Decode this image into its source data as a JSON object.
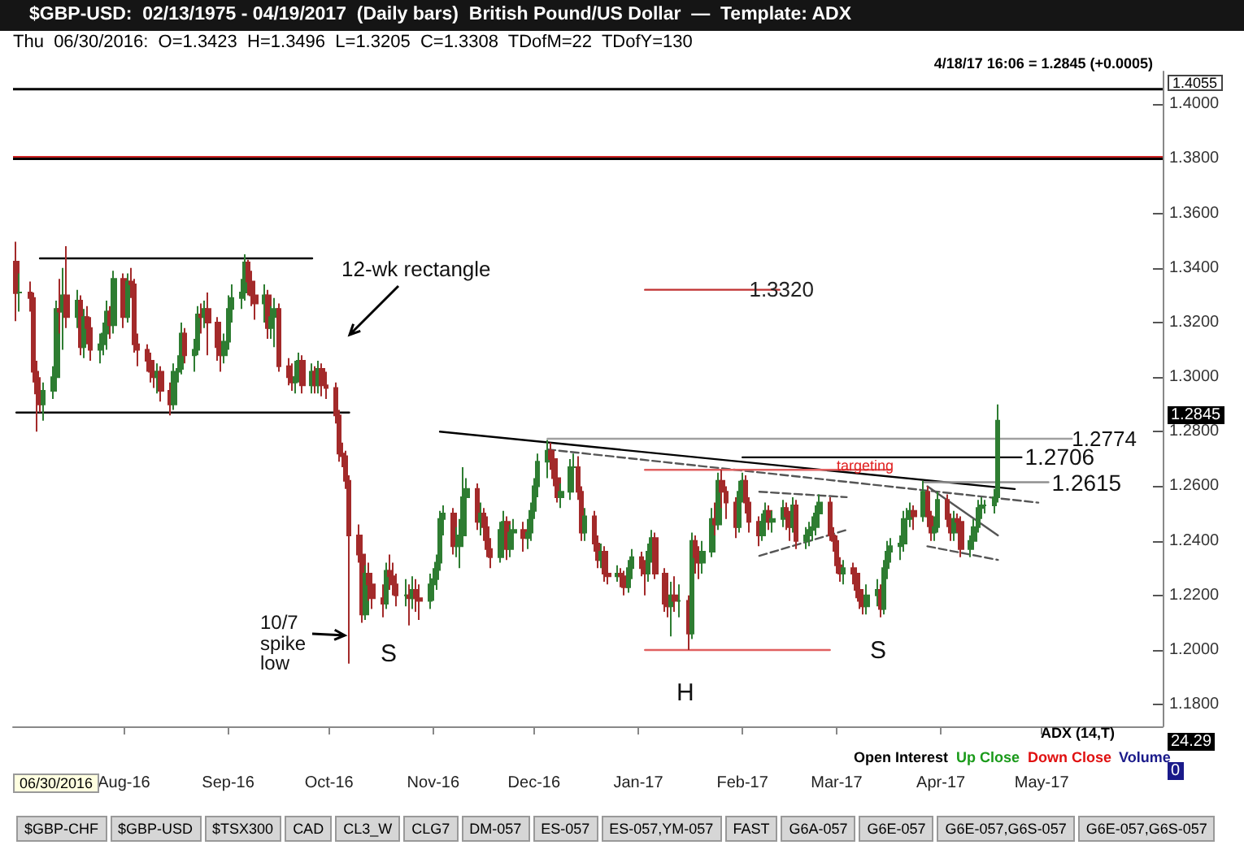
{
  "chart_data": {
    "type": "candlestick",
    "title": "$GBP-USD:  02/13/1975 - 04/19/2017  (Daily bars)  British Pound/US Dollar  —  Template: ADX",
    "subtitle": "Thu  06/30/2016:  O=1.3423  H=1.3496  L=1.3205  C=1.3308  TDofM=22  TDofY=130",
    "x": [
      "2016-06-30",
      "2016-07-01",
      "2016-07-04",
      "2016-07-05",
      "2016-07-06",
      "2016-07-07",
      "2016-07-08",
      "2016-07-11",
      "2016-07-12",
      "2016-07-13",
      "2016-07-14",
      "2016-07-15",
      "2016-07-18",
      "2016-07-19",
      "2016-07-20",
      "2016-07-21",
      "2016-07-22",
      "2016-07-25",
      "2016-07-26",
      "2016-07-27",
      "2016-07-28",
      "2016-07-29",
      "2016-08-01",
      "2016-08-02",
      "2016-08-03",
      "2016-08-04",
      "2016-08-05",
      "2016-08-08",
      "2016-08-09",
      "2016-08-10",
      "2016-08-11",
      "2016-08-12",
      "2016-08-15",
      "2016-08-16",
      "2016-08-17",
      "2016-08-18",
      "2016-08-19",
      "2016-08-22",
      "2016-08-23",
      "2016-08-24",
      "2016-08-25",
      "2016-08-26",
      "2016-08-29",
      "2016-08-30",
      "2016-08-31",
      "2016-09-01",
      "2016-09-02",
      "2016-09-05",
      "2016-09-06",
      "2016-09-07",
      "2016-09-08",
      "2016-09-09",
      "2016-09-12",
      "2016-09-13",
      "2016-09-14",
      "2016-09-15",
      "2016-09-16",
      "2016-09-19",
      "2016-09-20",
      "2016-09-21",
      "2016-09-22",
      "2016-09-23",
      "2016-09-26",
      "2016-09-27",
      "2016-09-28",
      "2016-09-29",
      "2016-09-30",
      "2016-10-03",
      "2016-10-04",
      "2016-10-05",
      "2016-10-06",
      "2016-10-07",
      "2016-10-10",
      "2016-10-11",
      "2016-10-12",
      "2016-10-13",
      "2016-10-14",
      "2016-10-17",
      "2016-10-18",
      "2016-10-19",
      "2016-10-20",
      "2016-10-21",
      "2016-10-24",
      "2016-10-25",
      "2016-10-26",
      "2016-10-27",
      "2016-10-28",
      "2016-10-31",
      "2016-11-01",
      "2016-11-02",
      "2016-11-03",
      "2016-11-04",
      "2016-11-07",
      "2016-11-08",
      "2016-11-09",
      "2016-11-10",
      "2016-11-11",
      "2016-11-14",
      "2016-11-15",
      "2016-11-16",
      "2016-11-17",
      "2016-11-18",
      "2016-11-21",
      "2016-11-22",
      "2016-11-23",
      "2016-11-24",
      "2016-11-25",
      "2016-11-28",
      "2016-11-29",
      "2016-11-30",
      "2016-12-01",
      "2016-12-02",
      "2016-12-05",
      "2016-12-06",
      "2016-12-07",
      "2016-12-08",
      "2016-12-09",
      "2016-12-12",
      "2016-12-13",
      "2016-12-14",
      "2016-12-15",
      "2016-12-16",
      "2016-12-19",
      "2016-12-20",
      "2016-12-21",
      "2016-12-22",
      "2016-12-23",
      "2016-12-26",
      "2016-12-27",
      "2016-12-28",
      "2016-12-29",
      "2016-12-30",
      "2017-01-02",
      "2017-01-03",
      "2017-01-04",
      "2017-01-05",
      "2017-01-06",
      "2017-01-09",
      "2017-01-10",
      "2017-01-11",
      "2017-01-12",
      "2017-01-13",
      "2017-01-16",
      "2017-01-17",
      "2017-01-18",
      "2017-01-19",
      "2017-01-20",
      "2017-01-23",
      "2017-01-24",
      "2017-01-25",
      "2017-01-26",
      "2017-01-27",
      "2017-01-30",
      "2017-01-31",
      "2017-02-01",
      "2017-02-02",
      "2017-02-03",
      "2017-02-06",
      "2017-02-07",
      "2017-02-08",
      "2017-02-09",
      "2017-02-10",
      "2017-02-13",
      "2017-02-14",
      "2017-02-15",
      "2017-02-16",
      "2017-02-17",
      "2017-02-20",
      "2017-02-21",
      "2017-02-22",
      "2017-02-23",
      "2017-02-24",
      "2017-02-27",
      "2017-02-28",
      "2017-03-01",
      "2017-03-02",
      "2017-03-03",
      "2017-03-06",
      "2017-03-07",
      "2017-03-08",
      "2017-03-09",
      "2017-03-10",
      "2017-03-13",
      "2017-03-14",
      "2017-03-15",
      "2017-03-16",
      "2017-03-17",
      "2017-03-20",
      "2017-03-21",
      "2017-03-22",
      "2017-03-23",
      "2017-03-24",
      "2017-03-27",
      "2017-03-28",
      "2017-03-29",
      "2017-03-30",
      "2017-03-31",
      "2017-04-03",
      "2017-04-04",
      "2017-04-05",
      "2017-04-06",
      "2017-04-07",
      "2017-04-10",
      "2017-04-11",
      "2017-04-12",
      "2017-04-13",
      "2017-04-14",
      "2017-04-17",
      "2017-04-18"
    ],
    "ohlc": [
      [
        1.3423,
        1.3496,
        1.3205,
        1.3308
      ],
      [
        1.331,
        1.338,
        1.324,
        1.331
      ],
      [
        1.331,
        1.335,
        1.324,
        1.329
      ],
      [
        1.329,
        1.331,
        1.298,
        1.302
      ],
      [
        1.302,
        1.306,
        1.28,
        1.294
      ],
      [
        1.294,
        1.3,
        1.287,
        1.29
      ],
      [
        1.29,
        1.298,
        1.284,
        1.295
      ],
      [
        1.295,
        1.304,
        1.292,
        1.3
      ],
      [
        1.3,
        1.328,
        1.298,
        1.325
      ],
      [
        1.325,
        1.336,
        1.316,
        1.324
      ],
      [
        1.324,
        1.34,
        1.31,
        1.33
      ],
      [
        1.33,
        1.348,
        1.318,
        1.322
      ],
      [
        1.322,
        1.332,
        1.318,
        1.328
      ],
      [
        1.328,
        1.33,
        1.308,
        1.311
      ],
      [
        1.311,
        1.325,
        1.307,
        1.322
      ],
      [
        1.322,
        1.326,
        1.312,
        1.318
      ],
      [
        1.318,
        1.322,
        1.306,
        1.31
      ],
      [
        1.31,
        1.316,
        1.305,
        1.312
      ],
      [
        1.312,
        1.32,
        1.308,
        1.316
      ],
      [
        1.316,
        1.328,
        1.31,
        1.324
      ],
      [
        1.324,
        1.326,
        1.314,
        1.319
      ],
      [
        1.319,
        1.339,
        1.316,
        1.336
      ],
      [
        1.336,
        1.338,
        1.318,
        1.322
      ],
      [
        1.322,
        1.338,
        1.32,
        1.335
      ],
      [
        1.335,
        1.34,
        1.329,
        1.334
      ],
      [
        1.334,
        1.336,
        1.309,
        1.312
      ],
      [
        1.312,
        1.316,
        1.304,
        1.31
      ],
      [
        1.31,
        1.312,
        1.302,
        1.306
      ],
      [
        1.306,
        1.309,
        1.298,
        1.302
      ],
      [
        1.302,
        1.306,
        1.296,
        1.3
      ],
      [
        1.3,
        1.305,
        1.294,
        1.302
      ],
      [
        1.302,
        1.304,
        1.291,
        1.295
      ],
      [
        1.295,
        1.298,
        1.286,
        1.29
      ],
      [
        1.29,
        1.305,
        1.288,
        1.302
      ],
      [
        1.302,
        1.308,
        1.298,
        1.303
      ],
      [
        1.303,
        1.32,
        1.301,
        1.316
      ],
      [
        1.316,
        1.318,
        1.305,
        1.308
      ],
      [
        1.308,
        1.314,
        1.302,
        1.31
      ],
      [
        1.31,
        1.326,
        1.308,
        1.323
      ],
      [
        1.323,
        1.327,
        1.316,
        1.322
      ],
      [
        1.322,
        1.328,
        1.318,
        1.325
      ],
      [
        1.325,
        1.331,
        1.308,
        1.32
      ],
      [
        1.32,
        1.322,
        1.306,
        1.311
      ],
      [
        1.311,
        1.315,
        1.302,
        1.308
      ],
      [
        1.308,
        1.316,
        1.305,
        1.313
      ],
      [
        1.313,
        1.33,
        1.31,
        1.325
      ],
      [
        1.325,
        1.334,
        1.32,
        1.329
      ],
      [
        1.329,
        1.336,
        1.325,
        1.331
      ],
      [
        1.331,
        1.345,
        1.328,
        1.342
      ],
      [
        1.342,
        1.343,
        1.33,
        1.335
      ],
      [
        1.335,
        1.339,
        1.326,
        1.33
      ],
      [
        1.33,
        1.333,
        1.321,
        1.327
      ],
      [
        1.327,
        1.334,
        1.32,
        1.33
      ],
      [
        1.33,
        1.332,
        1.314,
        1.318
      ],
      [
        1.318,
        1.326,
        1.314,
        1.322
      ],
      [
        1.322,
        1.329,
        1.311,
        1.325
      ],
      [
        1.325,
        1.327,
        1.302,
        1.304
      ],
      [
        1.304,
        1.307,
        1.297,
        1.3
      ],
      [
        1.3,
        1.305,
        1.295,
        1.298
      ],
      [
        1.298,
        1.306,
        1.294,
        1.3
      ],
      [
        1.3,
        1.309,
        1.298,
        1.306
      ],
      [
        1.306,
        1.308,
        1.294,
        1.297
      ],
      [
        1.297,
        1.305,
        1.294,
        1.302
      ],
      [
        1.302,
        1.304,
        1.294,
        1.297
      ],
      [
        1.297,
        1.306,
        1.294,
        1.303
      ],
      [
        1.303,
        1.305,
        1.293,
        1.297
      ],
      [
        1.297,
        1.302,
        1.292,
        1.296
      ],
      [
        1.296,
        1.298,
        1.283,
        1.286
      ],
      [
        1.286,
        1.288,
        1.269,
        1.272
      ],
      [
        1.272,
        1.276,
        1.267,
        1.271
      ],
      [
        1.271,
        1.273,
        1.259,
        1.262
      ],
      [
        1.262,
        1.264,
        1.195,
        1.242
      ],
      [
        1.242,
        1.246,
        1.232,
        1.235
      ],
      [
        1.235,
        1.237,
        1.21,
        1.213
      ],
      [
        1.213,
        1.231,
        1.211,
        1.228
      ],
      [
        1.228,
        1.232,
        1.218,
        1.224
      ],
      [
        1.224,
        1.227,
        1.215,
        1.219
      ],
      [
        1.219,
        1.224,
        1.212,
        1.217
      ],
      [
        1.217,
        1.232,
        1.215,
        1.229
      ],
      [
        1.229,
        1.235,
        1.222,
        1.227
      ],
      [
        1.227,
        1.232,
        1.22,
        1.224
      ],
      [
        1.224,
        1.228,
        1.216,
        1.22
      ],
      [
        1.22,
        1.226,
        1.216,
        1.22
      ],
      [
        1.22,
        1.224,
        1.209,
        1.219
      ],
      [
        1.219,
        1.227,
        1.215,
        1.222
      ],
      [
        1.222,
        1.226,
        1.214,
        1.219
      ],
      [
        1.219,
        1.224,
        1.211,
        1.218
      ],
      [
        1.218,
        1.228,
        1.215,
        1.224
      ],
      [
        1.224,
        1.23,
        1.218,
        1.226
      ],
      [
        1.226,
        1.235,
        1.222,
        1.232
      ],
      [
        1.232,
        1.251,
        1.229,
        1.248
      ],
      [
        1.248,
        1.253,
        1.242,
        1.25
      ],
      [
        1.25,
        1.252,
        1.235,
        1.238
      ],
      [
        1.238,
        1.245,
        1.234,
        1.238
      ],
      [
        1.238,
        1.248,
        1.23,
        1.242
      ],
      [
        1.242,
        1.267,
        1.24,
        1.256
      ],
      [
        1.256,
        1.263,
        1.248,
        1.259
      ],
      [
        1.259,
        1.261,
        1.244,
        1.247
      ],
      [
        1.247,
        1.254,
        1.242,
        1.25
      ],
      [
        1.25,
        1.252,
        1.24,
        1.245
      ],
      [
        1.245,
        1.249,
        1.234,
        1.237
      ],
      [
        1.237,
        1.241,
        1.23,
        1.234
      ],
      [
        1.234,
        1.247,
        1.232,
        1.244
      ],
      [
        1.244,
        1.251,
        1.24,
        1.247
      ],
      [
        1.247,
        1.249,
        1.233,
        1.237
      ],
      [
        1.237,
        1.246,
        1.234,
        1.243
      ],
      [
        1.243,
        1.248,
        1.238,
        1.244
      ],
      [
        1.244,
        1.247,
        1.236,
        1.241
      ],
      [
        1.241,
        1.248,
        1.237,
        1.243
      ],
      [
        1.243,
        1.254,
        1.24,
        1.251
      ],
      [
        1.251,
        1.263,
        1.248,
        1.26
      ],
      [
        1.26,
        1.272,
        1.256,
        1.269
      ],
      [
        1.269,
        1.277,
        1.263,
        1.273
      ],
      [
        1.273,
        1.276,
        1.266,
        1.27
      ],
      [
        1.27,
        1.272,
        1.26,
        1.263
      ],
      [
        1.263,
        1.266,
        1.254,
        1.256
      ],
      [
        1.256,
        1.261,
        1.252,
        1.258
      ],
      [
        1.258,
        1.27,
        1.255,
        1.267
      ],
      [
        1.267,
        1.272,
        1.262,
        1.267
      ],
      [
        1.267,
        1.271,
        1.255,
        1.258
      ],
      [
        1.258,
        1.26,
        1.24,
        1.243
      ],
      [
        1.243,
        1.252,
        1.24,
        1.249
      ],
      [
        1.249,
        1.251,
        1.236,
        1.239
      ],
      [
        1.239,
        1.242,
        1.23,
        1.233
      ],
      [
        1.233,
        1.239,
        1.23,
        1.236
      ],
      [
        1.236,
        1.238,
        1.225,
        1.228
      ],
      [
        1.228,
        1.232,
        1.224,
        1.227
      ],
      [
        1.227,
        1.231,
        1.225,
        1.228
      ],
      [
        1.228,
        1.23,
        1.223,
        1.227
      ],
      [
        1.227,
        1.229,
        1.22,
        1.223
      ],
      [
        1.223,
        1.233,
        1.221,
        1.23
      ],
      [
        1.23,
        1.237,
        1.226,
        1.234
      ],
      [
        1.234,
        1.236,
        1.227,
        1.23
      ],
      [
        1.23,
        1.233,
        1.22,
        1.228
      ],
      [
        1.228,
        1.239,
        1.225,
        1.236
      ],
      [
        1.236,
        1.244,
        1.232,
        1.241
      ],
      [
        1.241,
        1.243,
        1.226,
        1.228
      ],
      [
        1.228,
        1.23,
        1.214,
        1.217
      ],
      [
        1.217,
        1.222,
        1.212,
        1.216
      ],
      [
        1.216,
        1.225,
        1.205,
        1.22
      ],
      [
        1.22,
        1.227,
        1.214,
        1.218
      ],
      [
        1.218,
        1.224,
        1.212,
        1.218
      ],
      [
        1.218,
        1.22,
        1.2,
        1.206
      ],
      [
        1.206,
        1.243,
        1.204,
        1.24
      ],
      [
        1.24,
        1.242,
        1.228,
        1.234
      ],
      [
        1.234,
        1.238,
        1.226,
        1.232
      ],
      [
        1.232,
        1.24,
        1.228,
        1.236
      ],
      [
        1.236,
        1.252,
        1.234,
        1.248
      ],
      [
        1.248,
        1.254,
        1.242,
        1.246
      ],
      [
        1.246,
        1.265,
        1.244,
        1.262
      ],
      [
        1.262,
        1.266,
        1.252,
        1.258
      ],
      [
        1.258,
        1.26,
        1.248,
        1.254
      ],
      [
        1.254,
        1.256,
        1.241,
        1.245
      ],
      [
        1.245,
        1.262,
        1.243,
        1.258
      ],
      [
        1.258,
        1.265,
        1.254,
        1.262
      ],
      [
        1.262,
        1.264,
        1.25,
        1.254
      ],
      [
        1.254,
        1.256,
        1.243,
        1.247
      ],
      [
        1.247,
        1.249,
        1.238,
        1.242
      ],
      [
        1.242,
        1.25,
        1.24,
        1.247
      ],
      [
        1.247,
        1.254,
        1.244,
        1.251
      ],
      [
        1.251,
        1.253,
        1.244,
        1.247
      ],
      [
        1.247,
        1.251,
        1.243,
        1.248
      ],
      [
        1.248,
        1.255,
        1.245,
        1.252
      ],
      [
        1.252,
        1.254,
        1.244,
        1.249
      ],
      [
        1.249,
        1.251,
        1.24,
        1.245
      ],
      [
        1.245,
        1.256,
        1.243,
        1.253
      ],
      [
        1.253,
        1.255,
        1.237,
        1.24
      ],
      [
        1.24,
        1.245,
        1.237,
        1.242
      ],
      [
        1.242,
        1.247,
        1.238,
        1.244
      ],
      [
        1.244,
        1.249,
        1.24,
        1.245
      ],
      [
        1.245,
        1.253,
        1.242,
        1.25
      ],
      [
        1.25,
        1.257,
        1.246,
        1.254
      ],
      [
        1.254,
        1.256,
        1.24,
        1.242
      ],
      [
        1.242,
        1.245,
        1.236,
        1.24
      ],
      [
        1.24,
        1.242,
        1.228,
        1.231
      ],
      [
        1.231,
        1.234,
        1.225,
        1.228
      ],
      [
        1.228,
        1.233,
        1.224,
        1.23
      ],
      [
        1.23,
        1.232,
        1.224,
        1.228
      ],
      [
        1.228,
        1.23,
        1.219,
        1.222
      ],
      [
        1.222,
        1.225,
        1.215,
        1.218
      ],
      [
        1.218,
        1.221,
        1.213,
        1.216
      ],
      [
        1.216,
        1.224,
        1.213,
        1.22
      ],
      [
        1.22,
        1.226,
        1.216,
        1.222
      ],
      [
        1.222,
        1.224,
        1.212,
        1.215
      ],
      [
        1.215,
        1.233,
        1.213,
        1.23
      ],
      [
        1.23,
        1.24,
        1.226,
        1.236
      ],
      [
        1.236,
        1.241,
        1.232,
        1.238
      ],
      [
        1.238,
        1.242,
        1.233,
        1.239
      ],
      [
        1.239,
        1.251,
        1.236,
        1.248
      ],
      [
        1.248,
        1.252,
        1.244,
        1.248
      ],
      [
        1.248,
        1.254,
        1.245,
        1.251
      ],
      [
        1.251,
        1.253,
        1.244,
        1.249
      ],
      [
        1.249,
        1.262,
        1.247,
        1.258
      ],
      [
        1.258,
        1.26,
        1.245,
        1.249
      ],
      [
        1.249,
        1.251,
        1.24,
        1.243
      ],
      [
        1.243,
        1.249,
        1.24,
        1.245
      ],
      [
        1.245,
        1.258,
        1.243,
        1.255
      ],
      [
        1.255,
        1.257,
        1.245,
        1.248
      ],
      [
        1.248,
        1.25,
        1.24,
        1.243
      ],
      [
        1.243,
        1.251,
        1.24,
        1.248
      ],
      [
        1.248,
        1.25,
        1.243,
        1.247
      ],
      [
        1.247,
        1.249,
        1.234,
        1.237
      ],
      [
        1.237,
        1.242,
        1.234,
        1.24
      ],
      [
        1.24,
        1.248,
        1.238,
        1.245
      ],
      [
        1.245,
        1.255,
        1.243,
        1.252
      ],
      [
        1.252,
        1.256,
        1.248,
        1.253
      ],
      [
        1.253,
        1.255,
        1.25,
        1.253
      ],
      [
        1.253,
        1.259,
        1.25,
        1.256
      ],
      [
        1.256,
        1.29,
        1.254,
        1.284
      ]
    ],
    "colors": [
      "#a32a2a",
      "#2e7d32",
      "#a32a2a",
      "#a32a2a",
      "#a32a2a",
      "#a32a2a",
      "#2e7d32",
      "#2e7d32",
      "#2e7d32",
      "#a32a2a",
      "#2e7d32",
      "#a32a2a",
      "#2e7d32",
      "#a32a2a",
      "#2e7d32",
      "#a32a2a",
      "#a32a2a",
      "#2e7d32",
      "#2e7d32",
      "#2e7d32",
      "#a32a2a",
      "#2e7d32",
      "#a32a2a",
      "#2e7d32",
      "#a32a2a",
      "#a32a2a",
      "#a32a2a",
      "#a32a2a",
      "#a32a2a",
      "#a32a2a",
      "#2e7d32",
      "#a32a2a",
      "#a32a2a",
      "#2e7d32",
      "#2e7d32",
      "#2e7d32",
      "#a32a2a",
      "#2e7d32",
      "#2e7d32",
      "#a32a2a",
      "#2e7d32",
      "#a32a2a",
      "#a32a2a",
      "#a32a2a",
      "#2e7d32",
      "#2e7d32",
      "#2e7d32",
      "#2e7d32",
      "#2e7d32",
      "#a32a2a",
      "#a32a2a",
      "#a32a2a",
      "#2e7d32",
      "#a32a2a",
      "#2e7d32",
      "#2e7d32",
      "#a32a2a",
      "#a32a2a",
      "#a32a2a",
      "#2e7d32",
      "#2e7d32",
      "#a32a2a",
      "#2e7d32",
      "#a32a2a",
      "#2e7d32",
      "#a32a2a",
      "#a32a2a",
      "#a32a2a",
      "#a32a2a",
      "#a32a2a",
      "#a32a2a",
      "#a32a2a",
      "#a32a2a",
      "#a32a2a",
      "#2e7d32",
      "#a32a2a",
      "#a32a2a",
      "#a32a2a",
      "#2e7d32",
      "#a32a2a",
      "#a32a2a",
      "#a32a2a",
      "#2e7d32",
      "#a32a2a",
      "#2e7d32",
      "#a32a2a",
      "#a32a2a",
      "#2e7d32",
      "#2e7d32",
      "#2e7d32",
      "#2e7d32",
      "#2e7d32",
      "#a32a2a",
      "#2e7d32",
      "#2e7d32",
      "#2e7d32",
      "#2e7d32",
      "#a32a2a",
      "#2e7d32",
      "#a32a2a",
      "#a32a2a",
      "#a32a2a",
      "#2e7d32",
      "#2e7d32",
      "#a32a2a",
      "#2e7d32",
      "#2e7d32",
      "#a32a2a",
      "#2e7d32",
      "#2e7d32",
      "#2e7d32",
      "#2e7d32",
      "#2e7d32",
      "#a32a2a",
      "#a32a2a",
      "#a32a2a",
      "#2e7d32",
      "#2e7d32",
      "#2e7d32",
      "#a32a2a",
      "#a32a2a",
      "#2e7d32",
      "#a32a2a",
      "#a32a2a",
      "#2e7d32",
      "#a32a2a",
      "#a32a2a",
      "#2e7d32",
      "#a32a2a",
      "#a32a2a",
      "#2e7d32",
      "#2e7d32",
      "#a32a2a",
      "#a32a2a",
      "#2e7d32",
      "#2e7d32",
      "#a32a2a",
      "#a32a2a",
      "#a32a2a",
      "#2e7d32",
      "#a32a2a",
      "#2e7d32",
      "#a32a2a",
      "#2e7d32",
      "#a32a2a",
      "#a32a2a",
      "#2e7d32",
      "#2e7d32",
      "#a32a2a",
      "#2e7d32",
      "#a32a2a",
      "#a32a2a",
      "#a32a2a",
      "#2e7d32",
      "#2e7d32",
      "#a32a2a",
      "#a32a2a",
      "#a32a2a",
      "#2e7d32",
      "#2e7d32",
      "#a32a2a",
      "#2e7d32",
      "#2e7d32",
      "#a32a2a",
      "#a32a2a",
      "#2e7d32",
      "#a32a2a",
      "#2e7d32",
      "#2e7d32",
      "#2e7d32",
      "#2e7d32",
      "#2e7d32",
      "#a32a2a",
      "#a32a2a",
      "#a32a2a",
      "#a32a2a",
      "#2e7d32",
      "#a32a2a",
      "#a32a2a",
      "#a32a2a",
      "#a32a2a",
      "#2e7d32",
      "#2e7d32",
      "#a32a2a",
      "#2e7d32",
      "#2e7d32",
      "#2e7d32",
      "#2e7d32",
      "#2e7d32",
      "#2e7d32",
      "#2e7d32",
      "#a32a2a",
      "#2e7d32",
      "#a32a2a",
      "#a32a2a",
      "#2e7d32",
      "#2e7d32",
      "#a32a2a",
      "#a32a2a",
      "#2e7d32",
      "#a32a2a",
      "#a32a2a",
      "#2e7d32",
      "#2e7d32",
      "#2e7d32",
      "#2e7d32",
      "#2e7d32",
      "#2e7d32",
      "#2e7d32"
    ],
    "series": [
      {
        "type": "line",
        "x": [
          "2016-07-07",
          "2016-09-26"
        ],
        "values": [
          1.3435,
          1.3435
        ],
        "color": "#000000",
        "line_style": "solid"
      },
      {
        "type": "line",
        "x": [
          "2016-06-30",
          "2016-10-07"
        ],
        "values": [
          1.287,
          1.287
        ],
        "color": "#000000",
        "line_style": "solid"
      },
      {
        "type": "line",
        "x": [
          "2016-11-03",
          "2017-04-23"
        ],
        "values": [
          1.28,
          1.259
        ],
        "color": "#000000",
        "line_style": "solid"
      },
      {
        "type": "line",
        "x": [
          "2016-12-05",
          "2017-04-30"
        ],
        "values": [
          1.2735,
          1.254
        ],
        "color": "#555555",
        "line_style": "dashed"
      },
      {
        "type": "line",
        "x": [
          "2016-12-05",
          "2017-05-10"
        ],
        "values": [
          1.2774,
          1.2774
        ],
        "color": "#a0a0a0",
        "line_style": "solid"
      },
      {
        "type": "line",
        "x": [
          "2017-02-01",
          "2017-04-25"
        ],
        "values": [
          1.2706,
          1.2706
        ],
        "color": "#000000",
        "line_style": "solid"
      },
      {
        "type": "line",
        "x": [
          "2017-03-27",
          "2017-05-03"
        ],
        "values": [
          1.2615,
          1.2615
        ],
        "color": "#909090",
        "line_style": "solid"
      },
      {
        "type": "line",
        "x": [
          "2017-01-03",
          "2017-03-17"
        ],
        "values": [
          1.266,
          1.266
        ],
        "color": "#e06060",
        "line_style": "solid"
      },
      {
        "type": "line",
        "x": [
          "2017-01-03",
          "2017-02-12"
        ],
        "values": [
          1.332,
          1.332
        ],
        "color": "#c03030",
        "line_style": "solid"
      },
      {
        "type": "line",
        "x": [
          "2017-01-03",
          "2017-02-27"
        ],
        "values": [
          1.2,
          1.2
        ],
        "color": "#e06060",
        "line_style": "solid"
      },
      {
        "type": "line",
        "x": [
          "2017-02-06",
          "2017-03-04"
        ],
        "values": [
          1.258,
          1.256
        ],
        "color": "#555555",
        "line_style": "dashed"
      },
      {
        "type": "line",
        "x": [
          "2017-02-06",
          "2017-03-04"
        ],
        "values": [
          1.2345,
          1.244
        ],
        "color": "#555555",
        "line_style": "dashed"
      },
      {
        "type": "line",
        "x": [
          "2017-03-28",
          "2017-04-18"
        ],
        "values": [
          1.26,
          1.242
        ],
        "color": "#555555",
        "line_style": "solid"
      },
      {
        "type": "line",
        "x": [
          "2017-03-28",
          "2017-04-18"
        ],
        "values": [
          1.238,
          1.233
        ],
        "color": "#555555",
        "line_style": "dashed"
      }
    ],
    "ref_lines": [
      {
        "axis": "y",
        "value": 1.4055,
        "label": "1.4055",
        "color": "#000000"
      },
      {
        "axis": "y",
        "value": 1.3806,
        "color": "#cc2222"
      },
      {
        "axis": "y",
        "value": 1.38,
        "color": "#000000"
      }
    ],
    "annotations": [
      "12-wk rectangle",
      "10/7\nspike\nlow",
      "S",
      "H",
      "S",
      {
        "text": "1.3320",
        "x": "2017-02-03",
        "y": 1.332
      },
      {
        "text": "1.2774",
        "x": "2017-05-10",
        "y": 1.2774
      },
      {
        "text": "1.2706",
        "x": "2017-04-26",
        "y": 1.2706
      },
      {
        "text": "targeting",
        "x": "2017-03-01",
        "y": 1.2675
      },
      {
        "text": "1.2615",
        "x": "2017-05-04",
        "y": 1.2615
      },
      "1.2845",
      "4/18/17 16:06 = 1.2845 (+0.0005)",
      "ADX (14,T)",
      "24.29",
      "Open Interest",
      "Up Close",
      "Down Close",
      "Volume",
      "0",
      "06/30/2016",
      "$GBP-CHF",
      "$GBP-USD",
      "$TSX300",
      "CAD",
      "CL3_W",
      "CLG7",
      "DM-057",
      "ES-057",
      "ES-057,YM-057",
      "FAST",
      "G6A-057",
      "G6E-057",
      "G6E-057,G6S-057",
      "G6E-057,G6S-057"
    ],
    "xlim": [
      "2016-06-29",
      "2017-06-06"
    ],
    "xticks": [
      {
        "value": "2016-08-01",
        "label": "Aug-16"
      },
      {
        "value": "2016-09-01",
        "label": "Sep-16"
      },
      {
        "value": "2016-10-01",
        "label": "Oct-16"
      },
      {
        "value": "2016-11-01",
        "label": "Nov-16"
      },
      {
        "value": "2016-12-01",
        "label": "Dec-16"
      },
      {
        "value": "2017-01-01",
        "label": "Jan-17"
      },
      {
        "value": "2017-02-01",
        "label": "Feb-17"
      },
      {
        "value": "2017-03-01",
        "label": "Mar-17"
      },
      {
        "value": "2017-04-01",
        "label": "Apr-17"
      },
      {
        "value": "2017-05-01",
        "label": "May-17"
      }
    ],
    "ylim": [
      1.172,
      1.412
    ],
    "yticks": [
      {
        "value": 1.18,
        "label": "1.1800"
      },
      {
        "value": 1.2,
        "label": "1.2000"
      },
      {
        "value": 1.22,
        "label": "1.2200"
      },
      {
        "value": 1.24,
        "label": "1.2400"
      },
      {
        "value": 1.26,
        "label": "1.2600"
      },
      {
        "value": 1.28,
        "label": "1.2800"
      },
      {
        "value": 1.3,
        "label": "1.3000"
      },
      {
        "value": 1.32,
        "label": "1.3200"
      },
      {
        "value": 1.34,
        "label": "1.3400"
      },
      {
        "value": 1.36,
        "label": "1.3600"
      },
      {
        "value": 1.38,
        "label": "1.3800"
      },
      {
        "value": 1.4,
        "label": "1.4000"
      }
    ],
    "grid": false
  }
}
